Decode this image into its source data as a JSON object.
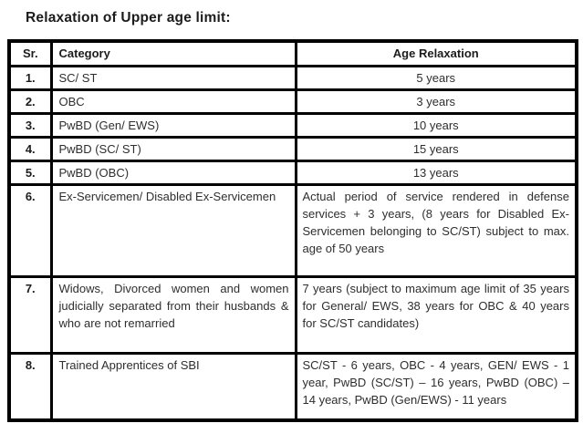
{
  "colors": {
    "background": "#ffffff",
    "border": "#000000",
    "text": "#2e2e2e",
    "title": "#1c1c1c"
  },
  "page": {
    "title": "Relaxation of Upper age limit:"
  },
  "table": {
    "headers": [
      "Sr.",
      "Category",
      "Age Relaxation"
    ],
    "rows": [
      {
        "sr": "1.",
        "category": "SC/ ST",
        "relaxation": "5 years",
        "multiline": false
      },
      {
        "sr": "2.",
        "category": "OBC",
        "relaxation": "3 years",
        "multiline": false
      },
      {
        "sr": "3.",
        "category": "PwBD (Gen/ EWS)",
        "relaxation": "10 years",
        "multiline": false
      },
      {
        "sr": "4.",
        "category": "PwBD (SC/ ST)",
        "relaxation": "15 years",
        "multiline": false
      },
      {
        "sr": "5.",
        "category": "PwBD (OBC)",
        "relaxation": "13 years",
        "multiline": false
      },
      {
        "sr": "6.",
        "category": "Ex-Servicemen/ Disabled Ex-Servicemen",
        "relaxation": "Actual period of service rendered in defense services + 3 years, (8 years for Disabled Ex- Servicemen belonging to SC/ST) subject to max. age of 50 years",
        "multiline": true
      },
      {
        "sr": "7.",
        "category": "Widows, Divorced women and women judicially separated from their husbands & who are not remarried",
        "relaxation": "7 years (subject to maximum age limit of 35 years for General/ EWS, 38 years for OBC & 40 years for SC/ST candidates)",
        "multiline": true
      },
      {
        "sr": "8.",
        "category": "Trained Apprentices of SBI",
        "relaxation": "SC/ST - 6 years, OBC - 4 years, GEN/ EWS - 1 year, PwBD (SC/ST) – 16 years, PwBD (OBC) – 14 years, PwBD (Gen/EWS) - 11 years",
        "multiline": true
      }
    ]
  }
}
